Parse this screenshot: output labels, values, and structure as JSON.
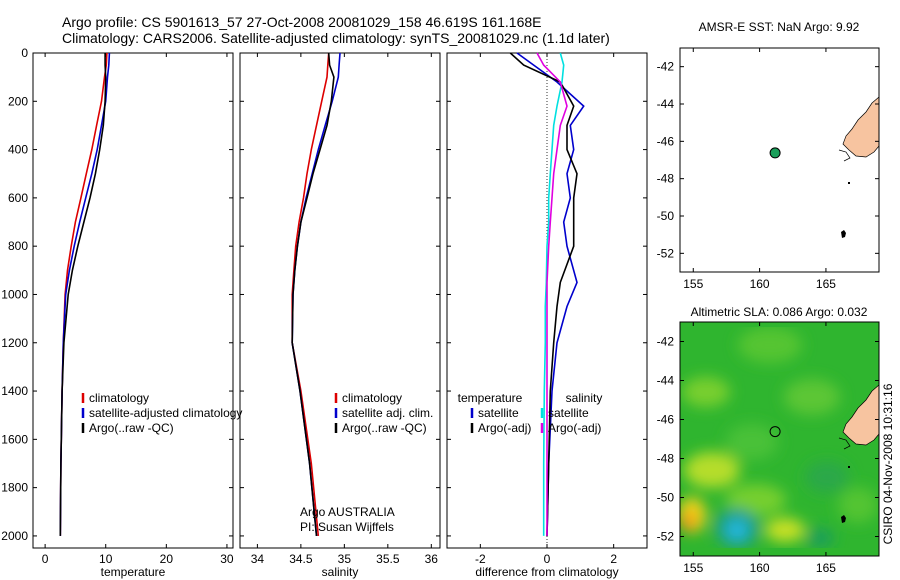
{
  "header": {
    "line1": "Argo profile: CS 5901613_57 27-Oct-2008 20081029_158 46.619S 161.168E",
    "line2": "Climatology: CARS2006. Satellite-adjusted climatology: synTS_20081029.nc (1.1d later)"
  },
  "side_label": "CSIRO 04-Nov-2008 10:31:16",
  "colors": {
    "climatology": "#dd0000",
    "satellite": "#0000cc",
    "argo": "#000000",
    "argo_adj_sal": "#e000e0",
    "sat_sal": "#00e0e0",
    "land": "#f7c4a0"
  },
  "chart_data": [
    {
      "type": "line",
      "panel": "temperature",
      "xlabel": "temperature",
      "ylabel": "",
      "xlim": [
        -2,
        31
      ],
      "ylim": [
        2050,
        0
      ],
      "xticks": [
        0,
        10,
        20,
        30
      ],
      "yticks": [
        0,
        200,
        400,
        600,
        800,
        1000,
        1200,
        1400,
        1600,
        1800,
        2000
      ],
      "legend": {
        "placement": "lower-right",
        "entries": [
          "climatology",
          "satellite-adjusted climatology",
          "Argo(..raw -QC)"
        ]
      },
      "series": [
        {
          "name": "climatology",
          "color": "#dd0000",
          "x": [
            10.2,
            10.1,
            9.8,
            9.3,
            8.5,
            7.7,
            6.8,
            5.9,
            5.0,
            4.3,
            3.7,
            3.3,
            3.0,
            2.8,
            2.6,
            2.5
          ],
          "y": [
            0,
            50,
            100,
            200,
            300,
            400,
            500,
            600,
            700,
            800,
            900,
            1000,
            1200,
            1400,
            1700,
            2000
          ]
        },
        {
          "name": "satellite-adjusted climatology",
          "color": "#0000cc",
          "x": [
            10.6,
            10.5,
            10.3,
            10.0,
            9.3,
            8.6,
            7.7,
            6.7,
            5.7,
            4.8,
            4.0,
            3.4,
            3.0,
            2.8,
            2.6,
            2.5
          ],
          "y": [
            0,
            50,
            100,
            200,
            300,
            400,
            500,
            600,
            700,
            800,
            900,
            1000,
            1200,
            1400,
            1700,
            2000
          ]
        },
        {
          "name": "Argo(..raw -QC)",
          "color": "#000000",
          "x": [
            9.9,
            9.9,
            10.0,
            9.9,
            9.6,
            9.0,
            8.3,
            7.4,
            6.4,
            5.4,
            4.5,
            3.8,
            3.1,
            2.8,
            2.6,
            2.5
          ],
          "y": [
            0,
            50,
            100,
            200,
            300,
            400,
            500,
            600,
            700,
            800,
            900,
            1000,
            1200,
            1400,
            1700,
            2000
          ]
        }
      ]
    },
    {
      "type": "line",
      "panel": "salinity",
      "xlabel": "salinity",
      "ylabel": "",
      "xlim": [
        33.8,
        36.1
      ],
      "ylim": [
        2050,
        0
      ],
      "xticks": [
        34,
        34.5,
        35,
        35.5,
        36
      ],
      "yticks": [
        0,
        200,
        400,
        600,
        800,
        1000,
        1200,
        1400,
        1600,
        1800,
        2000
      ],
      "legend": {
        "placement": "lower-right",
        "entries": [
          "climatology",
          "satellite adj. clim.",
          "Argo(..raw -QC)"
        ]
      },
      "annotation": [
        "Argo AUSTRALIA",
        "PI: Susan Wijffels"
      ],
      "series": [
        {
          "name": "climatology",
          "color": "#dd0000",
          "x": [
            34.82,
            34.81,
            34.8,
            34.74,
            34.68,
            34.62,
            34.57,
            34.53,
            34.48,
            34.44,
            34.42,
            34.4,
            34.4,
            34.5,
            34.62,
            34.7
          ],
          "y": [
            0,
            50,
            100,
            200,
            300,
            400,
            500,
            600,
            700,
            800,
            900,
            1000,
            1200,
            1400,
            1700,
            2000
          ]
        },
        {
          "name": "satellite adj. clim.",
          "color": "#0000cc",
          "x": [
            34.95,
            34.94,
            34.93,
            34.86,
            34.78,
            34.7,
            34.63,
            34.56,
            34.5,
            34.46,
            34.43,
            34.41,
            34.4,
            34.49,
            34.6,
            34.68
          ],
          "y": [
            0,
            50,
            100,
            200,
            300,
            400,
            500,
            600,
            700,
            800,
            900,
            1000,
            1200,
            1400,
            1700,
            2000
          ]
        },
        {
          "name": "Argo(..raw -QC)",
          "color": "#000000",
          "x": [
            34.82,
            34.83,
            34.88,
            34.85,
            34.8,
            34.72,
            34.64,
            34.57,
            34.5,
            34.46,
            34.43,
            34.41,
            34.4,
            34.49,
            34.6,
            34.68
          ],
          "y": [
            0,
            50,
            100,
            200,
            300,
            400,
            500,
            600,
            700,
            800,
            900,
            1000,
            1200,
            1400,
            1700,
            2000
          ]
        }
      ]
    },
    {
      "type": "line",
      "panel": "difference",
      "xlabel": "difference from climatology",
      "ylabel": "",
      "xlim": [
        -3,
        3
      ],
      "ylim": [
        2050,
        0
      ],
      "xticks": [
        -2,
        0,
        2
      ],
      "yticks": [
        0,
        200,
        400,
        600,
        800,
        1000,
        1200,
        1400,
        1600,
        1800,
        2000
      ],
      "legend": {
        "placement": "lower-center",
        "groups": [
          {
            "title": "temperature",
            "entries": [
              "satellite",
              "Argo(-adj)"
            ]
          },
          {
            "title": "salinity",
            "entries": [
              "satellite",
              "Argo(-adj)"
            ]
          }
        ]
      },
      "series": [
        {
          "name": "temperature satellite",
          "color": "#0000cc",
          "x": [
            -0.9,
            -0.4,
            0.3,
            1.1,
            0.7,
            0.8,
            0.6,
            0.7,
            0.5,
            0.6,
            0.9,
            0.6,
            0.3,
            0.15,
            0.05,
            0.0
          ],
          "y": [
            0,
            50,
            120,
            220,
            300,
            400,
            500,
            600,
            700,
            800,
            950,
            1050,
            1200,
            1400,
            1700,
            2000
          ]
        },
        {
          "name": "temperature Argo(-adj)",
          "color": "#000000",
          "x": [
            -1.1,
            -0.7,
            0.4,
            0.8,
            0.6,
            0.6,
            0.9,
            0.8,
            0.8,
            0.8,
            0.4,
            0.3,
            0.2,
            0.1,
            0.05,
            0.0
          ],
          "y": [
            0,
            50,
            120,
            220,
            300,
            400,
            500,
            600,
            700,
            800,
            950,
            1050,
            1200,
            1400,
            1700,
            2000
          ]
        },
        {
          "name": "salinity satellite",
          "color": "#00e0e0",
          "x": [
            0.4,
            0.5,
            0.45,
            0.3,
            0.2,
            0.15,
            0.1,
            0.05,
            0.05,
            0.0,
            -0.02,
            -0.05,
            -0.05,
            -0.08,
            -0.1,
            -0.1
          ],
          "y": [
            0,
            50,
            120,
            220,
            300,
            400,
            500,
            600,
            700,
            800,
            950,
            1050,
            1200,
            1400,
            1700,
            2000
          ]
        },
        {
          "name": "salinity Argo(-adj)",
          "color": "#e000e0",
          "x": [
            -0.3,
            -0.1,
            0.4,
            0.6,
            0.4,
            0.3,
            0.2,
            0.15,
            0.1,
            0.05,
            0.0,
            0.0,
            0.0,
            0.0,
            0.0,
            0.0
          ],
          "y": [
            0,
            50,
            120,
            220,
            300,
            400,
            500,
            600,
            700,
            800,
            950,
            1050,
            1200,
            1400,
            1700,
            2000
          ]
        }
      ]
    },
    {
      "type": "scatter",
      "panel": "sst_map",
      "title": "AMSR-E SST: NaN Argo: 9.92",
      "xlim": [
        154,
        169
      ],
      "ylim": [
        -53,
        -41
      ],
      "xticks": [
        155,
        160,
        165
      ],
      "yticks": [
        -42,
        -44,
        -46,
        -48,
        -50,
        -52
      ],
      "points": [
        {
          "x": 161.168,
          "y": -46.619
        }
      ]
    },
    {
      "type": "heatmap",
      "panel": "sla_map",
      "title": "Altimetric SLA: 0.086 Argo: 0.032",
      "xlim": [
        154,
        169
      ],
      "ylim": [
        -53,
        -41
      ],
      "xticks": [
        155,
        160,
        165
      ],
      "yticks": [
        -42,
        -44,
        -46,
        -48,
        -50,
        -52
      ],
      "points": [
        {
          "x": 161.168,
          "y": -46.619
        }
      ]
    }
  ]
}
